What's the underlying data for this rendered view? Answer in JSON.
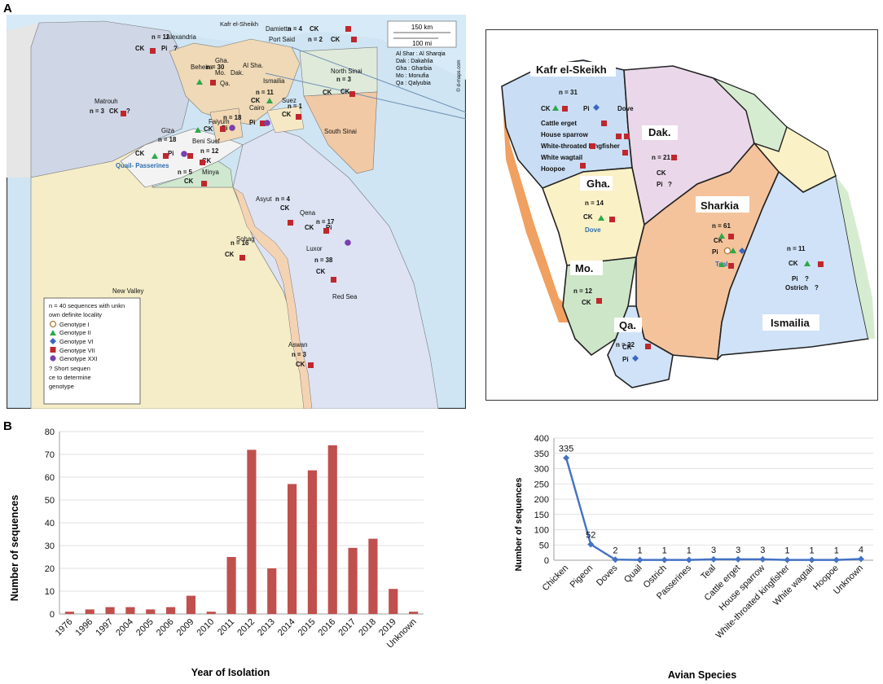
{
  "panels": {
    "a": "A",
    "b": "B"
  },
  "egypt_map": {
    "scale_km": "150 km",
    "scale_mi": "100 mi",
    "credit": "© d-maps.com",
    "abbreviations": [
      "Al Shar : Al Sharqia",
      "Dak : Dakahlia",
      "Gha : Gharbia",
      "Mo : Monufia",
      "Qa : Qalyubia"
    ],
    "labels": [
      {
        "text": "Kafr el-Sheikh"
      },
      {
        "text": "Damietta"
      },
      {
        "text": "n = 4"
      },
      {
        "text": "CK"
      },
      {
        "text": "n = 11"
      },
      {
        "text": "Alexandria"
      },
      {
        "text": "Port Said"
      },
      {
        "text": "n = 2"
      },
      {
        "text": "CK"
      },
      {
        "text": "CK"
      },
      {
        "text": "Pi"
      },
      {
        "text": "?"
      },
      {
        "text": "Beheira"
      },
      {
        "text": "n = 30"
      },
      {
        "text": "Gha."
      },
      {
        "text": "Dak."
      },
      {
        "text": "Mo."
      },
      {
        "text": "Al Sha."
      },
      {
        "text": "Qa."
      },
      {
        "text": "Ismailia"
      },
      {
        "text": "CK"
      },
      {
        "text": "North Sinai"
      },
      {
        "text": "n = 3"
      },
      {
        "text": "CK"
      },
      {
        "text": "Matrouh"
      },
      {
        "text": "n = 3"
      },
      {
        "text": "CK"
      },
      {
        "text": "?"
      },
      {
        "text": "n = 11"
      },
      {
        "text": "CK"
      },
      {
        "text": "Suez"
      },
      {
        "text": "n = 1"
      },
      {
        "text": "CK"
      },
      {
        "text": "Cairo"
      },
      {
        "text": "n = 18"
      },
      {
        "text": "Faiyum"
      },
      {
        "text": "CK"
      },
      {
        "text": "Pi"
      },
      {
        "text": "Pi"
      },
      {
        "text": "South Sinai"
      },
      {
        "text": "Giza"
      },
      {
        "text": "n = 18"
      },
      {
        "text": "Beni Suef"
      },
      {
        "text": "n = 12"
      },
      {
        "text": "CK"
      },
      {
        "text": "CK"
      },
      {
        "text": "Pi"
      },
      {
        "text": "Quail- Passerines"
      },
      {
        "text": "n = 5"
      },
      {
        "text": "Minya"
      },
      {
        "text": "CK"
      },
      {
        "text": "Asyut"
      },
      {
        "text": "n = 4"
      },
      {
        "text": "CK"
      },
      {
        "text": "Sohag"
      },
      {
        "text": "n = 16"
      },
      {
        "text": "CK"
      },
      {
        "text": "Qena"
      },
      {
        "text": "n = 17"
      },
      {
        "text": "CK"
      },
      {
        "text": "Pi"
      },
      {
        "text": "Luxor"
      },
      {
        "text": "n = 38"
      },
      {
        "text": "CK"
      },
      {
        "text": "New Valley"
      },
      {
        "text": "Red Sea"
      },
      {
        "text": "Aswan"
      },
      {
        "text": "n = 3"
      },
      {
        "text": "CK"
      }
    ],
    "legend": {
      "note": "n = 40  sequences  with unknown definite locality",
      "items": [
        "Genotype  I",
        "Genotype  II",
        "Genotype  VI",
        "Genotype  VII",
        "Genotype  XXI"
      ],
      "question": "?  Short  sequence  to determine  genotype"
    }
  },
  "delta_map": {
    "labels": [
      {
        "text": "Kafr el-Skeikh"
      },
      {
        "text": "n = 31"
      },
      {
        "text": "CK"
      },
      {
        "text": "Pi"
      },
      {
        "text": "Dove"
      },
      {
        "text": "Cattle erget"
      },
      {
        "text": "House sparrow"
      },
      {
        "text": "White-throated kingfisher"
      },
      {
        "text": "White wagtail"
      },
      {
        "text": "Hoopoe"
      },
      {
        "text": "Dak."
      },
      {
        "text": "n = 21"
      },
      {
        "text": "CK"
      },
      {
        "text": "Pi"
      },
      {
        "text": "?"
      },
      {
        "text": "Gha."
      },
      {
        "text": "n = 14"
      },
      {
        "text": "CK"
      },
      {
        "text": "Dove"
      },
      {
        "text": "Sharkia"
      },
      {
        "text": "n = 61"
      },
      {
        "text": "CK"
      },
      {
        "text": "Pi"
      },
      {
        "text": "Teal"
      },
      {
        "text": "n = 11"
      },
      {
        "text": "CK"
      },
      {
        "text": "Pi"
      },
      {
        "text": "?"
      },
      {
        "text": "Ostrich"
      },
      {
        "text": "?"
      },
      {
        "text": "Mo."
      },
      {
        "text": "n = 12"
      },
      {
        "text": "CK"
      },
      {
        "text": "Ismailia"
      },
      {
        "text": "Qa."
      },
      {
        "text": "n = 22"
      },
      {
        "text": "CK"
      },
      {
        "text": "Pi"
      }
    ]
  },
  "chart_data": [
    {
      "type": "bar",
      "title": "",
      "xlabel": "Year of Isolation",
      "ylabel": "Number of sequences",
      "ylim": [
        0,
        80
      ],
      "yticks": [
        "0",
        "10",
        "20",
        "30",
        "40",
        "50",
        "60",
        "70",
        "80"
      ],
      "grid": true,
      "categories": [
        "1976",
        "1996",
        "1997",
        "2004",
        "2005",
        "2006",
        "2009",
        "2010",
        "2011",
        "2012",
        "2013",
        "2014",
        "2015",
        "2016",
        "2017",
        "2018",
        "2019",
        "Unknown"
      ],
      "values": [
        1,
        2,
        3,
        3,
        2,
        3,
        8,
        1,
        25,
        72,
        20,
        57,
        63,
        74,
        29,
        33,
        11,
        1
      ],
      "color": "#c0504d"
    },
    {
      "type": "line",
      "title": "",
      "xlabel": "Avian Species",
      "ylabel": "Number of sequences",
      "ylim": [
        0,
        400
      ],
      "yticks": [
        "0",
        "50",
        "100",
        "150",
        "200",
        "250",
        "300",
        "350",
        "400"
      ],
      "grid": true,
      "categories": [
        "Chicken",
        "Pigeon",
        "Doves",
        "Quail",
        "Ostrich",
        "Passerines",
        "Teal",
        "Cattle erget",
        "House sparrow",
        "White-throated kingfisher",
        "White wagtail",
        "Hoopoe",
        "Unknown"
      ],
      "values": [
        335,
        52,
        2,
        1,
        1,
        1,
        3,
        3,
        3,
        1,
        1,
        1,
        4
      ],
      "data_labels": [
        "335",
        "52",
        "2",
        "1",
        "1",
        "1",
        "3",
        "3",
        "3",
        "1",
        "1",
        "1",
        "4"
      ],
      "color": "#4472c4"
    }
  ]
}
